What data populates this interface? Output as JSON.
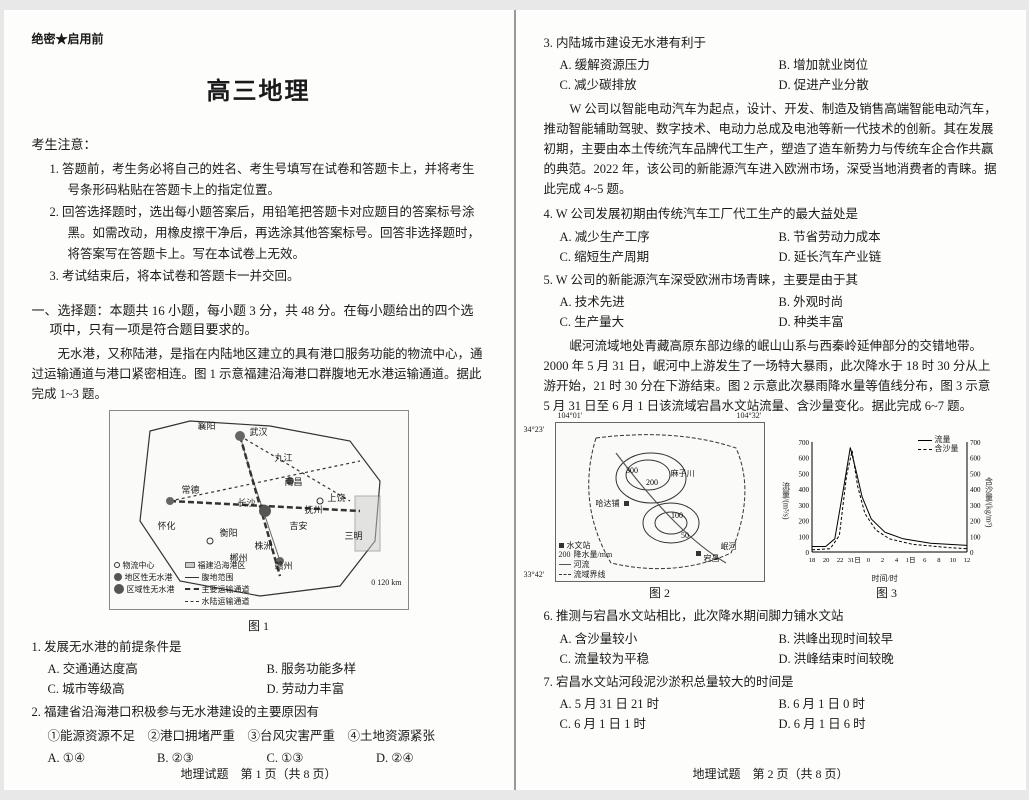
{
  "header": {
    "classification": "绝密★启用前"
  },
  "title": "高三地理",
  "notice": {
    "head": "考生注意：",
    "items": [
      "1. 答题前，考生务必将自己的姓名、考生号填写在试卷和答题卡上，并将考生号条形码粘贴在答题卡上的指定位置。",
      "2. 回答选择题时，选出每小题答案后，用铅笔把答题卡对应题目的答案标号涂黑。如需改动，用橡皮擦干净后，再选涂其他答案标号。回答非选择题时，将答案写在答题卡上。写在本试卷上无效。",
      "3. 考试结束后，将本试卷和答题卡一并交回。"
    ]
  },
  "section1": {
    "head": "一、选择题：本题共 16 小题，每小题 3 分，共 48 分。在每小题给出的四个选项中，只有一项是符合题目要求的。",
    "passage1": "无水港，又称陆港，是指在内陆地区建立的具有港口服务功能的物流中心，通过运输通道与港口紧密相连。图 1 示意福建沿海港口群腹地无水港运输通道。据此完成 1~3 题。"
  },
  "fig1": {
    "caption": "图 1",
    "cities": [
      "襄阳",
      "武汉",
      "九江",
      "南昌",
      "上饶",
      "抚州",
      "吉安",
      "赣州",
      "长沙",
      "常德",
      "衡阳",
      "怀化",
      "郴州",
      "株洲",
      "三明"
    ],
    "legend": {
      "l1": "物流中心",
      "l2": "福建沿海港区",
      "l3": "地区性无水港",
      "l4": "腹地范围",
      "l5": "区域性无水港",
      "l6": "主要运输通道",
      "l7": "水陆运输通道",
      "scale": "0    120 km"
    }
  },
  "q1": {
    "stem": "1. 发展无水港的前提条件是",
    "a": "A. 交通通达度高",
    "b": "B. 服务功能多样",
    "c": "C. 城市等级高",
    "d": "D. 劳动力丰富"
  },
  "q2": {
    "stem": "2. 福建省沿海港口积极参与无水港建设的主要原因有",
    "sub": "①能源资源不足　②港口拥堵严重　③台风灾害严重　④土地资源紧张",
    "a": "A. ①④",
    "b": "B. ②③",
    "c": "C. ①③",
    "d": "D. ②④"
  },
  "q3": {
    "stem": "3. 内陆城市建设无水港有利于",
    "a": "A. 缓解资源压力",
    "b": "B. 增加就业岗位",
    "c": "C. 减少碳排放",
    "d": "D. 促进产业分散"
  },
  "passage_w": "W 公司以智能电动汽车为起点，设计、开发、制造及销售高端智能电动汽车，推动智能辅助驾驶、数字技术、电动力总成及电池等新一代技术的创新。其在发展初期，主要由本土传统汽车品牌代工生产，塑造了造车新势力与传统车企合作共赢的典范。2022 年，该公司的新能源汽车进入欧洲市场，深受当地消费者的青睐。据此完成 4~5 题。",
  "q4": {
    "stem": "4. W 公司发展初期由传统汽车工厂代工生产的最大益处是",
    "a": "A. 减少生产工序",
    "b": "B. 节省劳动力成本",
    "c": "C. 缩短生产周期",
    "d": "D. 延长汽车产业链"
  },
  "q5": {
    "stem": "5. W 公司的新能源汽车深受欧洲市场青睐，主要是由于其",
    "a": "A. 技术先进",
    "b": "B. 外观时尚",
    "c": "C. 生产量大",
    "d": "D. 种类丰富"
  },
  "passage_river": "岷河流域地处青藏高原东部边缘的岷山山系与西秦岭延伸部分的交错地带。2000 年 5 月 31 日，岷河中上游发生了一场特大暴雨，此次降水于 18 时 30 分从上游开始，21 时 30 分在下游结束。图 2 示意此次暴雨降水量等值线分布，图 3 示意 5 月 31 日至 6 月 1 日该流域宕昌水文站流量、含沙量变化。据此完成 6~7 题。",
  "fig2": {
    "caption": "图 2",
    "lat_top": "34°23′",
    "lat_bot": "33°42′",
    "lon_left": "104°01′",
    "lon_right": "104°32′",
    "labels": [
      "哈达铺",
      "麻子川",
      "宕昌",
      "岷河"
    ],
    "legend": {
      "station": "水文站",
      "iso": "降水量/mm",
      "river": "河流",
      "boundary": "流域界线",
      "val": "200"
    }
  },
  "fig3": {
    "caption": "图 3",
    "y_left_label": "流量/(m³/s)",
    "y_right_label": "含沙量/(kg/m³)",
    "x_label": "时间/时",
    "y_left_ticks": [
      "0",
      "100",
      "200",
      "300",
      "400",
      "500",
      "600",
      "700"
    ],
    "y_right_ticks": [
      "0",
      "100",
      "200",
      "300",
      "400",
      "500",
      "600",
      "700"
    ],
    "x_ticks": [
      "18",
      "20",
      "22",
      "31日",
      "0",
      "2",
      "4",
      "1日",
      "6",
      "8",
      "10",
      "12"
    ],
    "series1": "流量",
    "series2": "含沙量",
    "flow_points": [
      [
        0,
        5
      ],
      [
        15,
        5
      ],
      [
        25,
        12
      ],
      [
        35,
        60
      ],
      [
        42,
        95
      ],
      [
        48,
        75
      ],
      [
        55,
        50
      ],
      [
        65,
        30
      ],
      [
        80,
        18
      ],
      [
        100,
        12
      ],
      [
        130,
        8
      ],
      [
        170,
        6
      ]
    ],
    "sed_points": [
      [
        0,
        2
      ],
      [
        20,
        3
      ],
      [
        30,
        15
      ],
      [
        38,
        70
      ],
      [
        44,
        92
      ],
      [
        50,
        60
      ],
      [
        58,
        35
      ],
      [
        70,
        20
      ],
      [
        85,
        12
      ],
      [
        110,
        7
      ],
      [
        150,
        4
      ],
      [
        170,
        3
      ]
    ],
    "colors": {
      "flow": "#000000",
      "sed": "#000000",
      "grid": "#cccccc",
      "bg": "#fafaf8"
    }
  },
  "q6": {
    "stem": "6. 推测与宕昌水文站相比，此次降水期间脚力铺水文站",
    "a": "A. 含沙量较小",
    "b": "B. 洪峰出现时间较早",
    "c": "C. 流量较为平稳",
    "d": "D. 洪峰结束时间较晚"
  },
  "q7": {
    "stem": "7. 宕昌水文站河段泥沙淤积总量较大的时间是",
    "a": "A. 5 月 31 日 21 时",
    "b": "B. 6 月 1 日 0 时",
    "c": "C. 6 月 1 日 1 时",
    "d": "D. 6 月 1 日 6 时"
  },
  "footer": {
    "p1": "地理试题　第 1 页（共 8 页）",
    "p2": "地理试题　第 2 页（共 8 页）"
  }
}
